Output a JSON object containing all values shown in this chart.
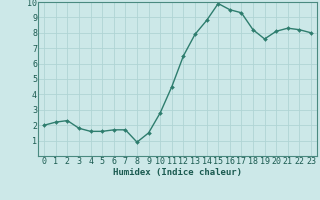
{
  "x": [
    0,
    1,
    2,
    3,
    4,
    5,
    6,
    7,
    8,
    9,
    10,
    11,
    12,
    13,
    14,
    15,
    16,
    17,
    18,
    19,
    20,
    21,
    22,
    23
  ],
  "y": [
    2.0,
    2.2,
    2.3,
    1.8,
    1.6,
    1.6,
    1.7,
    1.7,
    0.9,
    1.5,
    2.8,
    4.5,
    6.5,
    7.9,
    8.8,
    9.9,
    9.5,
    9.3,
    8.2,
    7.6,
    8.1,
    8.3,
    8.2,
    8.0
  ],
  "line_color": "#2e7d6e",
  "marker": "D",
  "marker_size": 2.0,
  "bg_color": "#cce8e8",
  "grid_color": "#b0d4d4",
  "xlabel": "Humidex (Indice chaleur)",
  "ylim": [
    0,
    10
  ],
  "xlim": [
    -0.5,
    23.5
  ],
  "yticks": [
    1,
    2,
    3,
    4,
    5,
    6,
    7,
    8,
    9,
    10
  ],
  "xticks": [
    0,
    1,
    2,
    3,
    4,
    5,
    6,
    7,
    8,
    9,
    10,
    11,
    12,
    13,
    14,
    15,
    16,
    17,
    18,
    19,
    20,
    21,
    22,
    23
  ],
  "xlabel_fontsize": 6.5,
  "tick_fontsize": 6.0,
  "line_width": 1.0,
  "spine_color": "#4a8a80"
}
